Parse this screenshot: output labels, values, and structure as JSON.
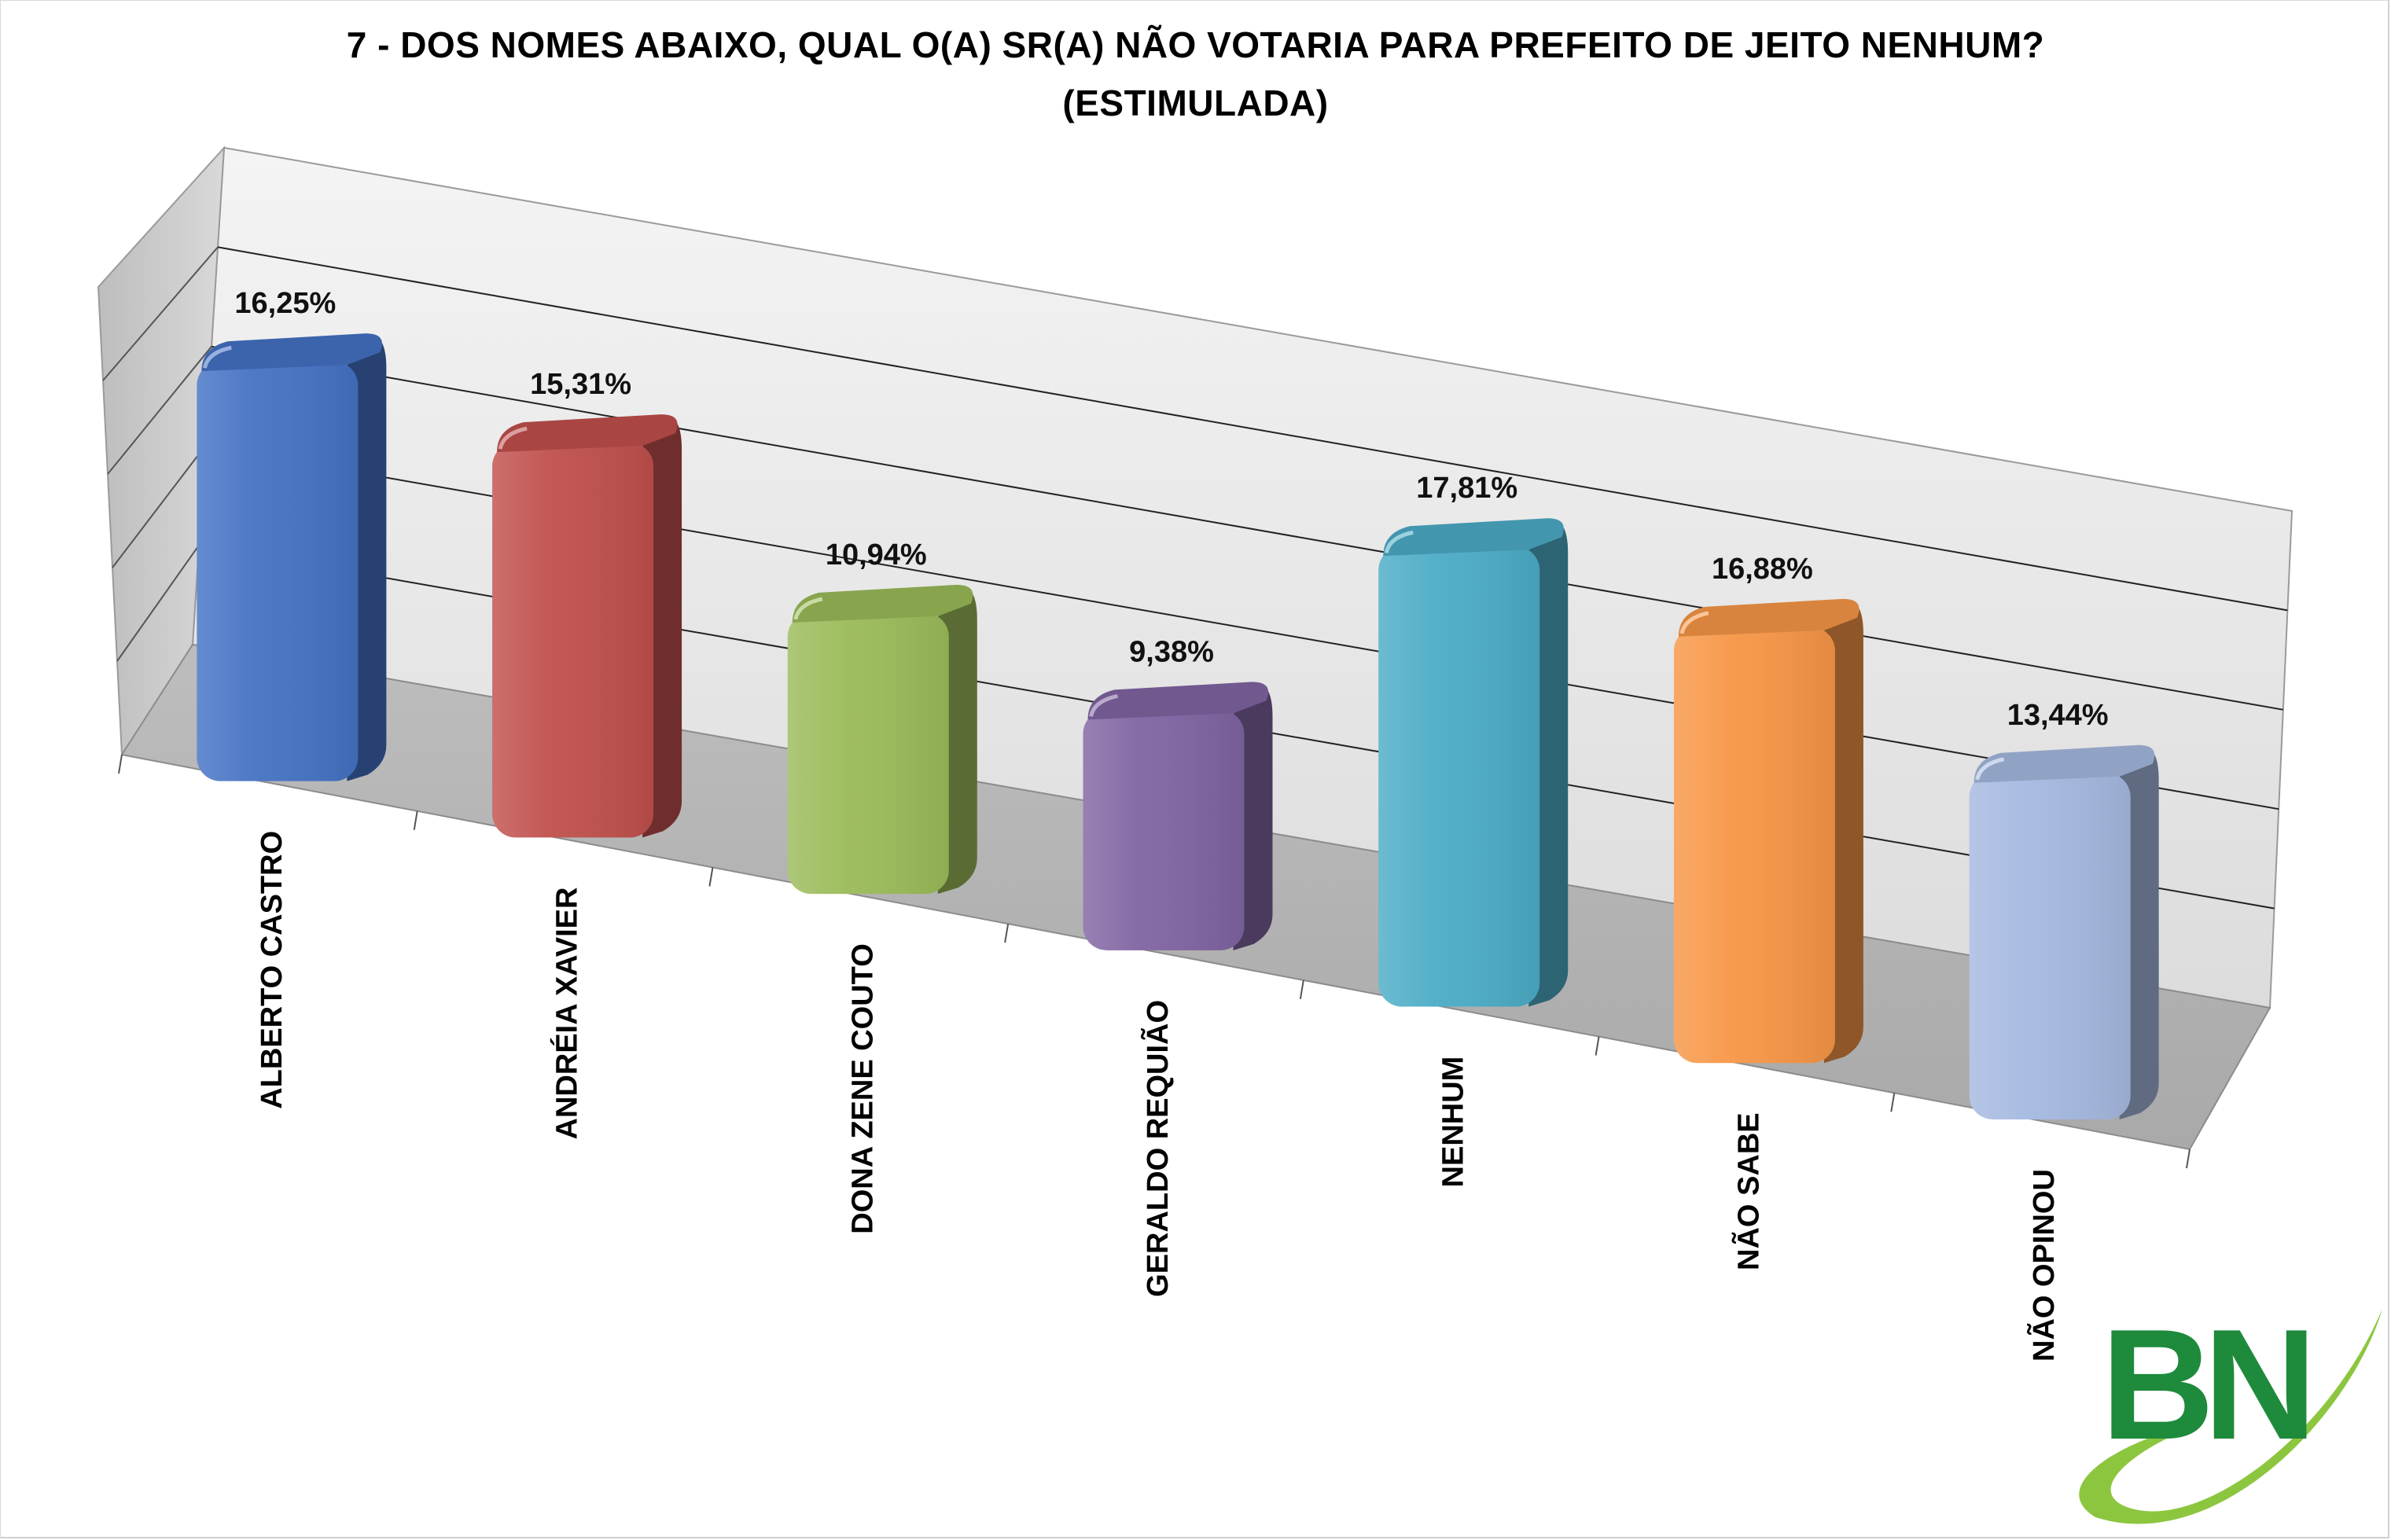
{
  "title_line1": "7 -  DOS NOMES ABAIXO, QUAL O(A) SR(A) NÃO VOTARIA PARA PREFEITO DE JEITO NENHUM?",
  "title_line2": "(ESTIMULADA)",
  "logo": {
    "text": "BN",
    "color": "#1e8a3c",
    "swoosh_color": "#8cc63f"
  },
  "chart_data": {
    "type": "bar",
    "title": "7 -  DOS NOMES ABAIXO, QUAL O(A) SR(A) NÃO VOTARIA PARA PREFEITO DE JEITO NENHUM? (ESTIMULADA)",
    "categories": [
      "ALBERTO CASTRO",
      "ANDRÉIA XAVIER",
      "DONA ZENE COUTO",
      "GERALDO REQUIÃO",
      "NENHUM",
      "NÃO SABE",
      "NÃO OPINOU"
    ],
    "values": [
      16.25,
      15.31,
      10.94,
      9.38,
      17.81,
      16.88,
      13.44
    ],
    "data_labels": [
      "16,25%",
      "15,31%",
      "10,94%",
      "9,38%",
      "17,81%",
      "16,88%",
      "13,44%"
    ],
    "colors": [
      "#4472c4",
      "#c0504d",
      "#9bbb59",
      "#8064a2",
      "#4bacc6",
      "#f79646",
      "#a5b9e0"
    ],
    "unit": "%",
    "ylim": [
      0,
      20
    ],
    "gridlines": true,
    "style": "3d-column"
  }
}
